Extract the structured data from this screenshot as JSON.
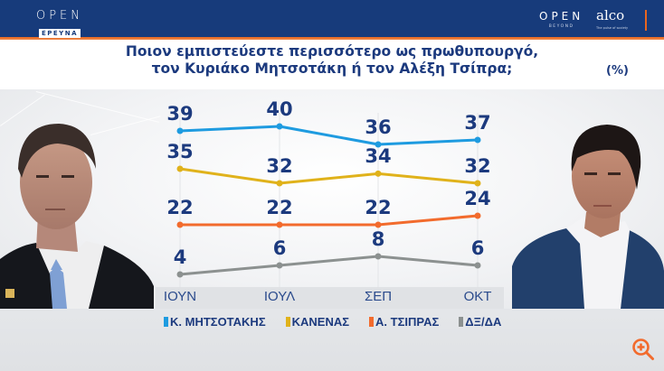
{
  "header": {
    "left_logo": {
      "wordmark": "OPEN",
      "sublabel": "ΕΡΕΥΝΑ"
    },
    "right_logo": {
      "wordmark": "OPEN",
      "sublabel": "BEYOND"
    },
    "partner_logo": {
      "name": "alco",
      "tagline": "The pulse of society"
    },
    "colors": {
      "header_bg": "#173b7b",
      "accent": "#e8661f"
    }
  },
  "title": {
    "line1": "Ποιον εμπιστεύεστε περισσότερο ως πρωθυπουργό,",
    "line2": "τον Κυριάκο Μητσοτάκη ή τον Αλέξη Τσίπρα;",
    "unit": "(%)"
  },
  "photos": {
    "left": "Κ. Μητσοτάκης portrait",
    "right": "Α. Τσίπρας portrait"
  },
  "zoom_icon": "zoom-in-icon",
  "chart_data": {
    "type": "line",
    "title": "Ποιον εμπιστεύεστε περισσότερο ως πρωθυπουργό, τον Κυριάκο Μητσοτάκη ή τον Αλέξη Τσίπρα;",
    "xlabel": "",
    "ylabel": "(%)",
    "categories": [
      "ΙΟΥΝ",
      "ΙΟΥΛ",
      "ΣΕΠ",
      "ΟΚΤ"
    ],
    "series": [
      {
        "name": "Κ. ΜΗΤΣΟΤΑΚΗΣ",
        "color": "#1e9be0",
        "values": [
          39,
          40,
          36,
          37
        ]
      },
      {
        "name": "ΚΑΝΕΝΑΣ",
        "color": "#e0b21b",
        "values": [
          35,
          32,
          34,
          32
        ]
      },
      {
        "name": "Α. ΤΣΙΠΡΑΣ",
        "color": "#f26b2d",
        "values": [
          22,
          22,
          22,
          24
        ]
      },
      {
        "name": "ΔΞ/ΔΑ",
        "color": "#8c9190",
        "values": [
          4,
          6,
          8,
          6
        ]
      }
    ],
    "grid": false,
    "legend_position": "bottom",
    "data_labels": true
  }
}
